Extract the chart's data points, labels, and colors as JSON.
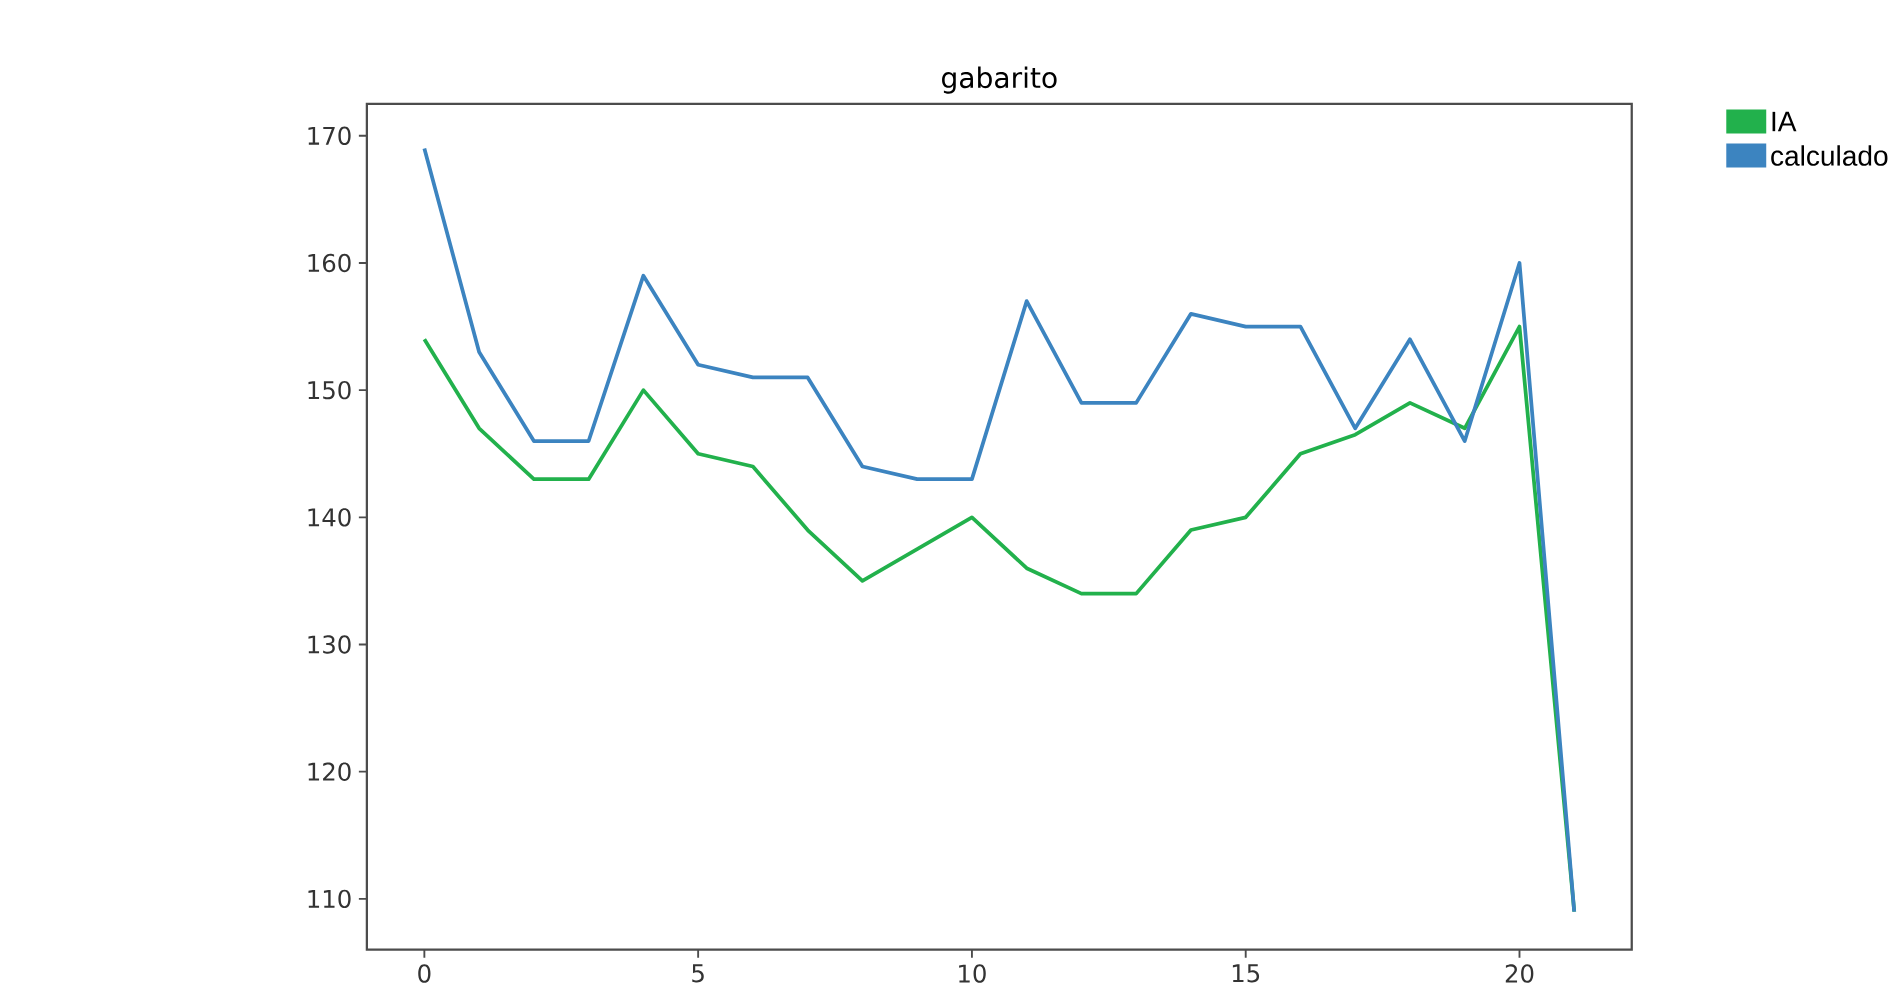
{
  "chart_data": {
    "type": "line",
    "title": "gabarito",
    "x": [
      0,
      1,
      2,
      3,
      4,
      5,
      6,
      7,
      8,
      9,
      10,
      11,
      12,
      13,
      14,
      15,
      16,
      17,
      18,
      19,
      20,
      21
    ],
    "series": [
      {
        "name": "IA",
        "color": "#22b14c",
        "values": [
          154,
          147,
          143,
          143,
          150,
          145,
          144,
          139,
          135,
          137.5,
          140,
          136,
          134,
          134,
          139,
          140,
          145,
          146.5,
          149,
          147,
          155,
          109
        ]
      },
      {
        "name": "calculado",
        "color": "#3c84c0",
        "values": [
          169,
          153,
          146,
          146,
          159,
          152,
          151,
          151,
          144,
          143,
          143,
          157,
          149,
          149,
          156,
          155,
          155,
          147,
          154,
          146,
          160,
          109
        ]
      }
    ],
    "xlim": [
      -1.05,
      22.05
    ],
    "ylim": [
      106,
      172.5
    ],
    "xticks": [
      0,
      5,
      10,
      15,
      20
    ],
    "yticks": [
      110,
      120,
      130,
      140,
      150,
      160,
      170
    ],
    "grid": false,
    "legend": "top right",
    "marker": "none",
    "line_style": "solid"
  }
}
